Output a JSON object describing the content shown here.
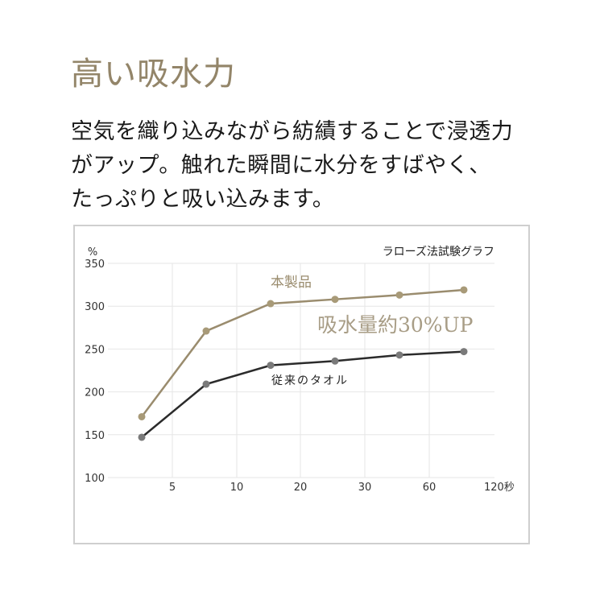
{
  "header": {
    "title": "高い吸水力",
    "description_lines": [
      "空気を織り込みながら紡績することで浸透力",
      "がアップ。触れた瞬間に水分をすばやく、",
      "たっぷりと吸い込みます。"
    ]
  },
  "colors": {
    "accent": "#9a8c6e",
    "product_line": "#9a8c6e",
    "product_marker": "#a89a78",
    "conventional_line": "#2b2b2b",
    "conventional_marker": "#7a7a7a",
    "grid": "#e6e6e6",
    "frame": "#cfcfcf"
  },
  "chart_data": {
    "type": "line",
    "title": "ラローズ法試験グラフ",
    "ylabel": "%",
    "xlabel": "秒",
    "ylim": [
      100,
      350
    ],
    "yticks": [
      "350",
      "300",
      "250",
      "200",
      "150",
      "100"
    ],
    "xticks": [
      "5",
      "10",
      "20",
      "30",
      "60",
      "120秒"
    ],
    "x_positions": [
      "<5",
      "5-10",
      "10-20",
      "20-30",
      "30-60",
      "60-120"
    ],
    "grid": true,
    "series": [
      {
        "name": "本製品",
        "values": [
          171,
          271,
          303,
          308,
          313,
          319
        ]
      },
      {
        "name": "従来のタオル",
        "values": [
          147,
          209,
          231,
          236,
          243,
          247
        ]
      }
    ],
    "annotations": [
      "本製品",
      "従来のタオル",
      "吸水量約30%UP"
    ]
  }
}
